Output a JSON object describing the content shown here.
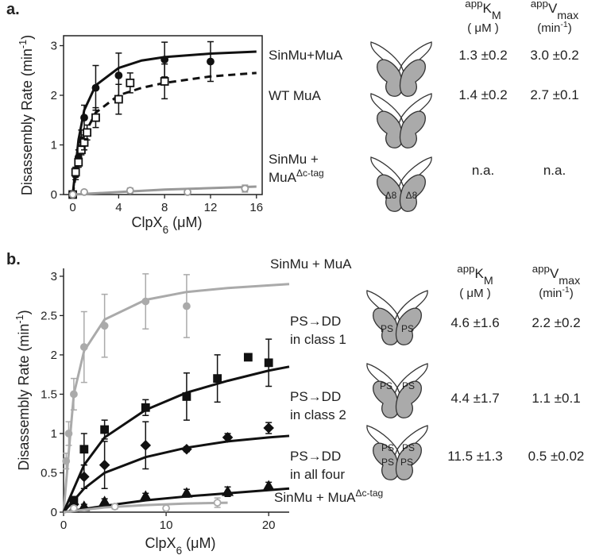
{
  "chart_data": [
    {
      "type": "scatter",
      "label": "a.",
      "xlabel": [
        "ClpX",
        "6",
        "  (μM)"
      ],
      "ylabel": [
        "Disassembly Rate (min",
        "-1",
        ")"
      ],
      "xlim": [
        -0.8,
        16.5
      ],
      "ylim": [
        0,
        3.2
      ],
      "xticks": [
        0,
        4,
        8,
        12,
        16
      ],
      "yticks": [
        0,
        1,
        2,
        3
      ],
      "frame": "box",
      "series": [
        {
          "name": [
            "SinMu+MuA"
          ],
          "color": "#111111",
          "marker": "circle",
          "filled": true,
          "x": [
            0,
            0.25,
            0.5,
            0.75,
            1,
            2,
            4,
            8,
            12
          ],
          "values": [
            0,
            0.4,
            0.75,
            1.1,
            1.55,
            2.15,
            2.4,
            2.72,
            2.68
          ],
          "errors": [
            0.03,
            0.1,
            0.15,
            0.2,
            0.25,
            0.45,
            0.45,
            0.35,
            0.4
          ],
          "fit": {
            "x": [
              0,
              0.5,
              1,
              2,
              4,
              6,
              8,
              12,
              16
            ],
            "y": [
              0,
              1.1,
              1.7,
              2.2,
              2.55,
              2.7,
              2.77,
              2.84,
              2.88
            ]
          },
          "fit_dash": false
        },
        {
          "name": [
            "WT MuA"
          ],
          "color": "#111111",
          "marker": "square",
          "filled": false,
          "x": [
            0,
            0.25,
            0.5,
            0.75,
            1,
            1.25,
            2,
            4,
            5,
            8
          ],
          "values": [
            0,
            0.45,
            0.65,
            0.9,
            1.05,
            1.25,
            1.55,
            1.92,
            2.25,
            2.28
          ],
          "errors": [
            0.03,
            0.1,
            0.1,
            0.1,
            0.15,
            0.15,
            0.2,
            0.3,
            0.2,
            0.35
          ],
          "fit": {
            "x": [
              0,
              0.5,
              1,
              2,
              4,
              6,
              8,
              12,
              16
            ],
            "y": [
              0,
              0.75,
              1.2,
              1.65,
              2.0,
              2.15,
              2.25,
              2.38,
              2.45
            ]
          },
          "fit_dash": true
        },
        {
          "name": [
            "SinMu +",
            "MuA"
          ],
          "name_sup": "Δc-tag",
          "color": "#999999",
          "marker": "circle",
          "filled": false,
          "x": [
            0,
            1,
            5,
            10,
            15
          ],
          "values": [
            0,
            0.05,
            0.08,
            0.05,
            0.12
          ],
          "errors": [
            0.02,
            0.03,
            0.05,
            0.03,
            0.07
          ],
          "fit": {
            "x": [
              0,
              4,
              8,
              12,
              16
            ],
            "y": [
              0,
              0.05,
              0.1,
              0.13,
              0.16
            ]
          },
          "fit_dash": false
        }
      ]
    },
    {
      "type": "scatter",
      "label": "b.",
      "xlabel": [
        "ClpX",
        "6",
        "  (μM)"
      ],
      "ylabel": [
        "Disassembly Rate (min",
        "-1",
        ")"
      ],
      "xlim": [
        0,
        22
      ],
      "ylim": [
        0,
        3.1
      ],
      "xticks": [
        0,
        10,
        20
      ],
      "yticks": [
        0,
        0.5,
        1,
        1.5,
        2,
        2.5,
        3
      ],
      "frame": "axes",
      "series": [
        {
          "name": [
            "SinMu + MuA"
          ],
          "color": "#aaaaaa",
          "marker": "circle",
          "filled": true,
          "x": [
            0.25,
            0.5,
            1,
            2,
            4,
            8,
            12
          ],
          "values": [
            0.65,
            1.0,
            1.5,
            2.1,
            2.37,
            2.68,
            2.62
          ],
          "errors": [
            0.1,
            0.15,
            0.2,
            0.45,
            0.4,
            0.35,
            0.4
          ],
          "fit": {
            "x": [
              0,
              1,
              2,
              4,
              8,
              12,
              16,
              22
            ],
            "y": [
              0,
              1.5,
              2.05,
              2.45,
              2.7,
              2.8,
              2.85,
              2.9
            ]
          },
          "fit_dash": false
        },
        {
          "name": [
            "PS→DD",
            "in class 1"
          ],
          "color": "#111111",
          "marker": "square",
          "filled": true,
          "x": [
            1,
            2,
            4,
            8,
            12,
            15,
            18,
            20
          ],
          "values": [
            0.15,
            0.8,
            1.05,
            1.33,
            1.47,
            1.7,
            1.97,
            1.9
          ],
          "errors": [
            0.05,
            0.2,
            0.12,
            0.1,
            0.3,
            0.3,
            0.03,
            0.3
          ],
          "fit": {
            "x": [
              0,
              2,
              4,
              8,
              12,
              16,
              20,
              22
            ],
            "y": [
              0,
              0.6,
              0.95,
              1.3,
              1.52,
              1.67,
              1.8,
              1.85
            ]
          },
          "fit_dash": false
        },
        {
          "name": [
            "PS→DD",
            "in class 2"
          ],
          "color": "#111111",
          "marker": "diamond",
          "filled": true,
          "x": [
            1,
            2,
            4,
            8,
            12,
            16,
            20
          ],
          "values": [
            0.1,
            0.45,
            0.6,
            0.85,
            0.8,
            0.95,
            1.07
          ],
          "errors": [
            0.05,
            0.15,
            0.3,
            0.3,
            0.03,
            0.05,
            0.07
          ],
          "fit": {
            "x": [
              0,
              2,
              4,
              8,
              12,
              16,
              20,
              22
            ],
            "y": [
              0,
              0.3,
              0.5,
              0.7,
              0.82,
              0.9,
              0.95,
              0.97
            ]
          },
          "fit_dash": false
        },
        {
          "name": [
            "PS→DD",
            "in all four"
          ],
          "color": "#111111",
          "marker": "triangle",
          "filled": true,
          "x": [
            1,
            2,
            4,
            8,
            12,
            16,
            20
          ],
          "values": [
            0.05,
            0.07,
            0.13,
            0.2,
            0.24,
            0.26,
            0.33
          ],
          "errors": [
            0.03,
            0.03,
            0.04,
            0.04,
            0.05,
            0.06,
            0.05
          ],
          "fit": {
            "x": [
              0,
              2,
              4,
              8,
              12,
              16,
              20,
              22
            ],
            "y": [
              0,
              0.04,
              0.08,
              0.15,
              0.2,
              0.24,
              0.28,
              0.3
            ]
          },
          "fit_dash": false
        },
        {
          "name": [
            "SinMu + MuA"
          ],
          "name_sup": "Δc-tag",
          "color": "#aaaaaa",
          "marker": "circle",
          "filled": false,
          "x": [
            1,
            5,
            10,
            15
          ],
          "values": [
            0.05,
            0.07,
            0.05,
            0.12
          ],
          "errors": [
            0.03,
            0.03,
            0.02,
            0.06
          ],
          "fit": {
            "x": [
              0,
              4,
              8,
              12,
              16
            ],
            "y": [
              0,
              0.06,
              0.09,
              0.11,
              0.12
            ]
          },
          "fit_dash": false
        }
      ]
    }
  ],
  "tables": [
    {
      "headers": [
        [
          "app",
          "K",
          "M"
        ],
        [
          "app",
          "V",
          "max"
        ]
      ],
      "units": [
        [
          "( μM )"
        ],
        [
          "(min",
          "-1",
          ")"
        ]
      ],
      "rows": [
        {
          "km": "1.3 ±0.2",
          "vmax": "3.0 ±0.2"
        },
        {
          "km": "1.4 ±0.2",
          "vmax": "2.7 ±0.1"
        },
        {
          "km": "n.a.",
          "vmax": "n.a.",
          "labels": [
            "Δ8",
            "Δ8"
          ]
        }
      ]
    },
    {
      "headers": [
        [
          "app",
          "K",
          "M"
        ],
        [
          "app",
          "V",
          "max"
        ]
      ],
      "units": [
        [
          "( μM )"
        ],
        [
          "(min",
          "-1",
          ")"
        ]
      ],
      "rows": [
        {
          "km": "4.6 ±1.6",
          "vmax": "2.2 ±0.2",
          "labels": [
            "PS",
            "PS"
          ]
        },
        {
          "km": "4.4 ±1.7",
          "vmax": "1.1 ±0.1",
          "labels": [
            "PS",
            "PS"
          ]
        },
        {
          "km": "11.5 ±1.3",
          "vmax": "0.5 ±0.02",
          "labels": [
            "PS",
            "PS",
            "PS",
            "PS"
          ]
        }
      ]
    }
  ]
}
